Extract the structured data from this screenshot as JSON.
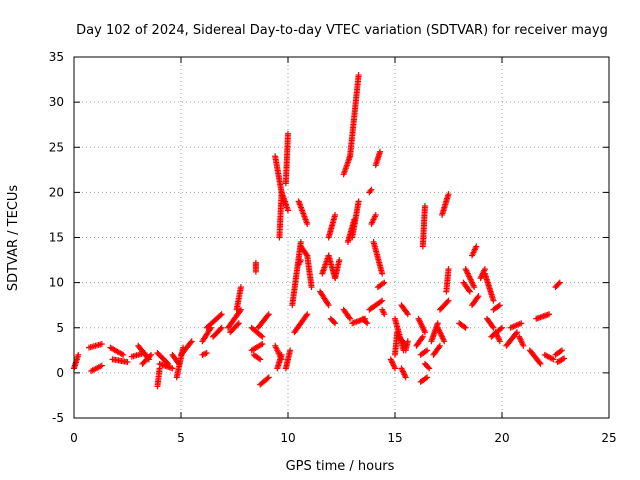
{
  "chart_data": {
    "type": "scatter",
    "title": "Day 102 of 2024, Sidereal Day-to-day VTEC variation (SDTVAR) for receiver mayg",
    "xlabel": "GPS time / hours",
    "ylabel": "SDTVAR / TECUs",
    "xlim": [
      0,
      25
    ],
    "ylim": [
      -5,
      35
    ],
    "xticks": [
      0,
      5,
      10,
      15,
      20,
      25
    ],
    "yticks": [
      -5,
      0,
      5,
      10,
      15,
      20,
      25,
      30,
      35
    ],
    "grid": true,
    "marker": "+",
    "color": "#ff0000",
    "series": [
      {
        "name": "SDTVAR",
        "segments": [
          [
            [
              0.0,
              0.5
            ],
            [
              0.2,
              2.0
            ]
          ],
          [
            [
              0.7,
              2.8
            ],
            [
              1.3,
              3.2
            ]
          ],
          [
            [
              0.8,
              0.2
            ],
            [
              1.3,
              0.8
            ]
          ],
          [
            [
              1.7,
              2.8
            ],
            [
              2.3,
              2.0
            ]
          ],
          [
            [
              1.8,
              1.5
            ],
            [
              2.5,
              1.2
            ]
          ],
          [
            [
              2.7,
              1.8
            ],
            [
              3.3,
              2.2
            ]
          ],
          [
            [
              3.0,
              3.0
            ],
            [
              3.5,
              1.5
            ]
          ],
          [
            [
              3.2,
              1.0
            ],
            [
              3.6,
              2.0
            ]
          ],
          [
            [
              3.9,
              2.2
            ],
            [
              4.4,
              1.0
            ]
          ],
          [
            [
              3.9,
              -1.5
            ],
            [
              4.0,
              0.5
            ]
          ],
          [
            [
              4.0,
              1.0
            ],
            [
              4.6,
              0.5
            ]
          ],
          [
            [
              4.6,
              2.0
            ],
            [
              4.9,
              1.0
            ]
          ],
          [
            [
              4.8,
              -0.5
            ],
            [
              5.1,
              2.8
            ]
          ],
          [
            [
              5.0,
              2.0
            ],
            [
              5.5,
              3.5
            ]
          ],
          [
            [
              6.0,
              2.0
            ],
            [
              6.2,
              2.2
            ]
          ],
          [
            [
              6.0,
              3.5
            ],
            [
              6.4,
              5.0
            ]
          ],
          [
            [
              6.2,
              5.0
            ],
            [
              6.9,
              6.5
            ]
          ],
          [
            [
              6.5,
              4.0
            ],
            [
              6.9,
              5.0
            ]
          ],
          [
            [
              7.2,
              5.0
            ],
            [
              7.8,
              7.0
            ]
          ],
          [
            [
              7.3,
              4.5
            ],
            [
              7.7,
              5.5
            ]
          ],
          [
            [
              7.6,
              7.0
            ],
            [
              7.8,
              9.5
            ]
          ],
          [
            [
              8.3,
              5.0
            ],
            [
              8.8,
              4.0
            ]
          ],
          [
            [
              8.5,
              11.2
            ],
            [
              8.5,
              12.2
            ]
          ],
          [
            [
              8.3,
              2.5
            ],
            [
              8.8,
              3.2
            ]
          ],
          [
            [
              8.4,
              2.0
            ],
            [
              8.7,
              1.5
            ]
          ],
          [
            [
              8.6,
              5.0
            ],
            [
              9.1,
              6.5
            ]
          ],
          [
            [
              8.7,
              -1.3
            ],
            [
              9.1,
              -0.5
            ]
          ],
          [
            [
              9.4,
              24.0
            ],
            [
              9.7,
              20.0
            ]
          ],
          [
            [
              9.6,
              15.0
            ],
            [
              9.7,
              20.0
            ]
          ],
          [
            [
              9.7,
              20.0
            ],
            [
              10.0,
              18.0
            ]
          ],
          [
            [
              9.9,
              21.0
            ],
            [
              10.0,
              26.5
            ]
          ],
          [
            [
              9.4,
              3.0
            ],
            [
              9.7,
              1.5
            ]
          ],
          [
            [
              9.5,
              0.5
            ],
            [
              9.7,
              2.0
            ]
          ],
          [
            [
              9.9,
              0.5
            ],
            [
              10.1,
              2.5
            ]
          ],
          [
            [
              10.5,
              19.0
            ],
            [
              10.9,
              16.5
            ]
          ],
          [
            [
              10.6,
              14.0
            ],
            [
              10.9,
              13.0
            ]
          ],
          [
            [
              10.2,
              7.5
            ],
            [
              10.6,
              14.5
            ]
          ],
          [
            [
              10.3,
              4.5
            ],
            [
              10.9,
              6.5
            ]
          ],
          [
            [
              10.5,
              12.0
            ],
            [
              10.6,
              12.5
            ]
          ],
          [
            [
              10.9,
              13.0
            ],
            [
              11.1,
              9.5
            ]
          ],
          [
            [
              11.5,
              9.0
            ],
            [
              11.9,
              7.5
            ]
          ],
          [
            [
              11.6,
              11.0
            ],
            [
              11.9,
              13.0
            ]
          ],
          [
            [
              11.9,
              13.0
            ],
            [
              12.2,
              10.5
            ]
          ],
          [
            [
              11.9,
              15.0
            ],
            [
              12.2,
              17.5
            ]
          ],
          [
            [
              12.0,
              6.0
            ],
            [
              12.2,
              5.5
            ]
          ],
          [
            [
              12.2,
              10.5
            ],
            [
              12.4,
              12.5
            ]
          ],
          [
            [
              12.6,
              7.0
            ],
            [
              12.9,
              6.0
            ]
          ],
          [
            [
              12.6,
              22.0
            ],
            [
              12.9,
              24.0
            ]
          ],
          [
            [
              12.9,
              24.0
            ],
            [
              13.3,
              33.0
            ]
          ],
          [
            [
              12.8,
              14.5
            ],
            [
              13.1,
              17.0
            ]
          ],
          [
            [
              13.0,
              15.0
            ],
            [
              13.3,
              19.0
            ]
          ],
          [
            [
              13.0,
              5.5
            ],
            [
              13.6,
              6.0
            ]
          ],
          [
            [
              13.5,
              6.0
            ],
            [
              13.7,
              5.5
            ]
          ],
          [
            [
              13.8,
              20.0
            ],
            [
              13.9,
              20.3
            ]
          ],
          [
            [
              13.9,
              16.5
            ],
            [
              14.1,
              17.5
            ]
          ],
          [
            [
              14.1,
              23.0
            ],
            [
              14.3,
              24.5
            ]
          ],
          [
            [
              14.0,
              14.5
            ],
            [
              14.4,
              11.0
            ]
          ],
          [
            [
              14.2,
              9.5
            ],
            [
              14.5,
              10.0
            ]
          ],
          [
            [
              13.8,
              7.0
            ],
            [
              14.4,
              8.0
            ]
          ],
          [
            [
              14.4,
              7.0
            ],
            [
              14.5,
              6.5
            ]
          ],
          [
            [
              14.8,
              1.5
            ],
            [
              15.0,
              0.5
            ]
          ],
          [
            [
              15.0,
              2.0
            ],
            [
              15.1,
              4.5
            ]
          ],
          [
            [
              15.0,
              6.0
            ],
            [
              15.4,
              2.5
            ]
          ],
          [
            [
              15.2,
              4.0
            ],
            [
              15.5,
              3.0
            ]
          ],
          [
            [
              15.3,
              0.5
            ],
            [
              15.5,
              -0.5
            ]
          ],
          [
            [
              15.3,
              7.5
            ],
            [
              15.6,
              6.5
            ]
          ],
          [
            [
              15.5,
              2.5
            ],
            [
              15.6,
              3.5
            ]
          ],
          [
            [
              16.0,
              3.0
            ],
            [
              16.3,
              4.0
            ]
          ],
          [
            [
              16.2,
              2.0
            ],
            [
              16.5,
              2.5
            ]
          ],
          [
            [
              16.1,
              6.0
            ],
            [
              16.4,
              4.5
            ]
          ],
          [
            [
              16.4,
              1.0
            ],
            [
              16.6,
              0.5
            ]
          ],
          [
            [
              16.2,
              -1.0
            ],
            [
              16.5,
              -0.5
            ]
          ],
          [
            [
              16.3,
              14.0
            ],
            [
              16.4,
              18.5
            ]
          ],
          [
            [
              16.7,
              3.5
            ],
            [
              17.0,
              5.5
            ]
          ],
          [
            [
              16.8,
              2.0
            ],
            [
              17.1,
              3.0
            ]
          ],
          [
            [
              17.0,
              5.0
            ],
            [
              17.3,
              3.5
            ]
          ],
          [
            [
              17.1,
              7.0
            ],
            [
              17.5,
              8.0
            ]
          ],
          [
            [
              17.4,
              9.0
            ],
            [
              17.5,
              11.5
            ]
          ],
          [
            [
              17.2,
              17.5
            ],
            [
              17.5,
              19.8
            ]
          ],
          [
            [
              18.2,
              10.0
            ],
            [
              18.5,
              9.0
            ]
          ],
          [
            [
              18.0,
              5.5
            ],
            [
              18.3,
              5.0
            ]
          ],
          [
            [
              18.3,
              11.5
            ],
            [
              18.7,
              9.5
            ]
          ],
          [
            [
              18.6,
              13.0
            ],
            [
              18.8,
              14.0
            ]
          ],
          [
            [
              18.6,
              7.5
            ],
            [
              18.9,
              8.5
            ]
          ],
          [
            [
              19.0,
              10.5
            ],
            [
              19.2,
              11.5
            ]
          ],
          [
            [
              19.2,
              11.0
            ],
            [
              19.6,
              8.0
            ]
          ],
          [
            [
              19.5,
              4.0
            ],
            [
              20.0,
              5.0
            ]
          ],
          [
            [
              19.3,
              6.0
            ],
            [
              19.6,
              5.0
            ]
          ],
          [
            [
              19.6,
              7.0
            ],
            [
              19.9,
              7.5
            ]
          ],
          [
            [
              19.7,
              4.5
            ],
            [
              19.9,
              3.5
            ]
          ],
          [
            [
              20.2,
              3.0
            ],
            [
              20.7,
              4.5
            ]
          ],
          [
            [
              20.4,
              5.0
            ],
            [
              20.9,
              5.5
            ]
          ],
          [
            [
              20.8,
              4.0
            ],
            [
              21.0,
              3.0
            ]
          ],
          [
            [
              21.3,
              2.5
            ],
            [
              21.8,
              1.0
            ]
          ],
          [
            [
              21.6,
              6.0
            ],
            [
              22.2,
              6.5
            ]
          ],
          [
            [
              22.0,
              2.0
            ],
            [
              22.4,
              1.5
            ]
          ],
          [
            [
              22.5,
              2.0
            ],
            [
              22.8,
              2.5
            ]
          ],
          [
            [
              22.5,
              9.5
            ],
            [
              22.7,
              10.0
            ]
          ],
          [
            [
              22.6,
              1.2
            ],
            [
              22.9,
              1.6
            ]
          ]
        ]
      }
    ]
  }
}
